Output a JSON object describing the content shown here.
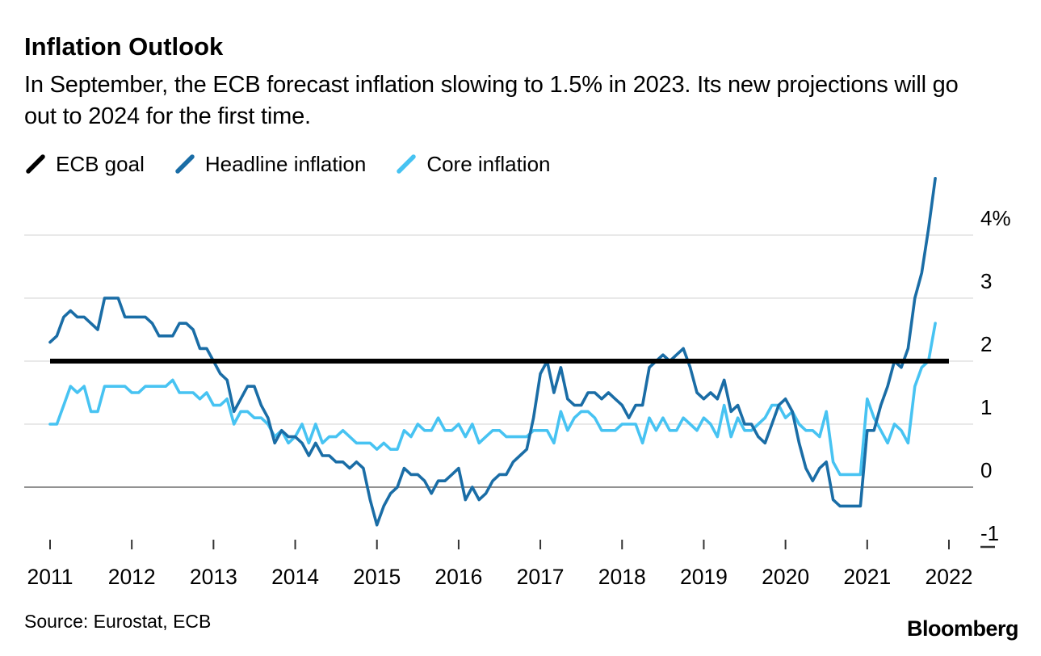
{
  "header": {
    "title": "Inflation Outlook",
    "subtitle": "In September, the ECB forecast inflation slowing to 1.5% in 2023. Its new projections will go out to 2024 for the first time."
  },
  "legend": [
    {
      "label": "ECB goal",
      "color": "#000000"
    },
    {
      "label": "Headline inflation",
      "color": "#1a6da6"
    },
    {
      "label": "Core inflation",
      "color": "#47c3f2"
    }
  ],
  "footer": {
    "source": "Source: Eurostat, ECB",
    "brand": "Bloomberg"
  },
  "chart_data": {
    "type": "line",
    "title": "Inflation Outlook",
    "x_unit": "month",
    "x_start": "2011-01",
    "x_end": "2021-11",
    "x_tick_labels": [
      "2011",
      "2012",
      "2013",
      "2014",
      "2015",
      "2016",
      "2017",
      "2018",
      "2019",
      "2020",
      "2021",
      "2022"
    ],
    "y_ticks": [
      4,
      3,
      2,
      1,
      0,
      -1
    ],
    "y_tick_labels": [
      "4%",
      "3",
      "2",
      "1",
      "0",
      "-1"
    ],
    "ylim": [
      -1.4,
      5.0
    ],
    "grid": "horizontal",
    "legend_position": "top-left",
    "goal": {
      "name": "ECB goal",
      "value": 2,
      "color": "#000000"
    },
    "series": [
      {
        "name": "Headline inflation",
        "color": "#1a6da6",
        "values": [
          2.3,
          2.4,
          2.7,
          2.8,
          2.7,
          2.7,
          2.6,
          2.5,
          3.0,
          3.0,
          3.0,
          2.7,
          2.7,
          2.7,
          2.7,
          2.6,
          2.4,
          2.4,
          2.4,
          2.6,
          2.6,
          2.5,
          2.2,
          2.2,
          2.0,
          1.8,
          1.7,
          1.2,
          1.4,
          1.6,
          1.6,
          1.3,
          1.1,
          0.7,
          0.9,
          0.8,
          0.8,
          0.7,
          0.5,
          0.7,
          0.5,
          0.5,
          0.4,
          0.4,
          0.3,
          0.4,
          0.3,
          -0.2,
          -0.6,
          -0.3,
          -0.1,
          0.0,
          0.3,
          0.2,
          0.2,
          0.1,
          -0.1,
          0.1,
          0.1,
          0.2,
          0.3,
          -0.2,
          0.0,
          -0.2,
          -0.1,
          0.1,
          0.2,
          0.2,
          0.4,
          0.5,
          0.6,
          1.1,
          1.8,
          2.0,
          1.5,
          1.9,
          1.4,
          1.3,
          1.3,
          1.5,
          1.5,
          1.4,
          1.5,
          1.4,
          1.3,
          1.1,
          1.3,
          1.3,
          1.9,
          2.0,
          2.1,
          2.0,
          2.1,
          2.2,
          1.9,
          1.5,
          1.4,
          1.5,
          1.4,
          1.7,
          1.2,
          1.3,
          1.0,
          1.0,
          0.8,
          0.7,
          1.0,
          1.3,
          1.4,
          1.2,
          0.7,
          0.3,
          0.1,
          0.3,
          0.4,
          -0.2,
          -0.3,
          -0.3,
          -0.3,
          -0.3,
          0.9,
          0.9,
          1.3,
          1.6,
          2.0,
          1.9,
          2.2,
          3.0,
          3.4,
          4.1,
          4.9
        ]
      },
      {
        "name": "Core inflation",
        "color": "#47c3f2",
        "values": [
          1.0,
          1.0,
          1.3,
          1.6,
          1.5,
          1.6,
          1.2,
          1.2,
          1.6,
          1.6,
          1.6,
          1.6,
          1.5,
          1.5,
          1.6,
          1.6,
          1.6,
          1.6,
          1.7,
          1.5,
          1.5,
          1.5,
          1.4,
          1.5,
          1.3,
          1.3,
          1.4,
          1.0,
          1.2,
          1.2,
          1.1,
          1.1,
          1.0,
          0.8,
          0.9,
          0.7,
          0.8,
          1.0,
          0.7,
          1.0,
          0.7,
          0.8,
          0.8,
          0.9,
          0.8,
          0.7,
          0.7,
          0.7,
          0.6,
          0.7,
          0.6,
          0.6,
          0.9,
          0.8,
          1.0,
          0.9,
          0.9,
          1.1,
          0.9,
          0.9,
          1.0,
          0.8,
          1.0,
          0.7,
          0.8,
          0.9,
          0.9,
          0.8,
          0.8,
          0.8,
          0.8,
          0.9,
          0.9,
          0.9,
          0.7,
          1.2,
          0.9,
          1.1,
          1.2,
          1.2,
          1.1,
          0.9,
          0.9,
          0.9,
          1.0,
          1.0,
          1.0,
          0.7,
          1.1,
          0.9,
          1.1,
          0.9,
          0.9,
          1.1,
          1.0,
          0.9,
          1.1,
          1.0,
          0.8,
          1.3,
          0.8,
          1.1,
          0.9,
          0.9,
          1.0,
          1.1,
          1.3,
          1.3,
          1.1,
          1.2,
          1.0,
          0.9,
          0.9,
          0.8,
          1.2,
          0.4,
          0.2,
          0.2,
          0.2,
          0.2,
          1.4,
          1.1,
          0.9,
          0.7,
          1.0,
          0.9,
          0.7,
          1.6,
          1.9,
          2.0,
          2.6
        ]
      }
    ]
  }
}
